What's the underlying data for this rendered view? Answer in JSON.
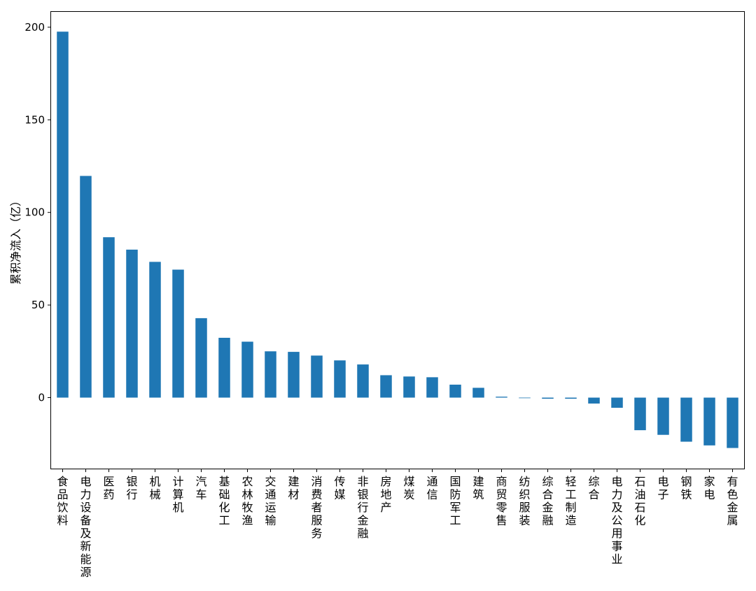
{
  "chart_data": {
    "type": "bar",
    "title": "",
    "xlabel": "",
    "ylabel": "累积净流入（亿）",
    "ylim": [
      -38,
      208
    ],
    "yticks": [
      0,
      50,
      100,
      150,
      200
    ],
    "grid": false,
    "colors": {
      "bar": "#1f77b4"
    },
    "categories": [
      "食品饮料",
      "电力设备及新能源",
      "医药",
      "银行",
      "机械",
      "计算机",
      "汽车",
      "基础化工",
      "农林牧渔",
      "交通运输",
      "建材",
      "消费者服务",
      "传媒",
      "非银行金融",
      "房地产",
      "煤炭",
      "通信",
      "国防军工",
      "建筑",
      "商贸零售",
      "纺织服装",
      "综合金融",
      "轻工制造",
      "综合",
      "电力及公用事业",
      "石油石化",
      "电子",
      "钢铁",
      "家电",
      "有色金属"
    ],
    "values": [
      197.6,
      119.7,
      86.6,
      79.9,
      73.3,
      69.1,
      42.9,
      32.3,
      30.2,
      25.0,
      24.7,
      22.7,
      20.1,
      17.9,
      12.1,
      11.4,
      11.0,
      7.0,
      5.3,
      0.5,
      0.0,
      -0.6,
      -0.6,
      -3.2,
      -5.5,
      -17.6,
      -20.1,
      -23.8,
      -25.8,
      -27.2
    ]
  }
}
